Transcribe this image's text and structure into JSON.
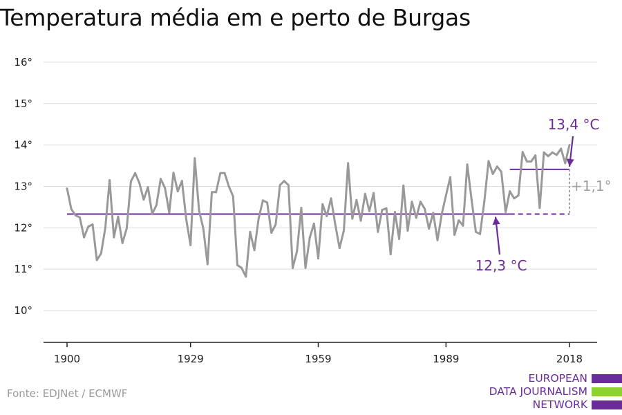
{
  "title": "Temperatura média em e perto de Burgas",
  "source": "Fonte: EDJNet / ECMWF",
  "logo": {
    "line1": "EUROPEAN",
    "line2": "DATA JOURNALISM",
    "line3": "NETWORK"
  },
  "colors": {
    "series": "#999999",
    "accent": "#6a2c9a",
    "grid": "#dddddd",
    "green": "#8fd12f",
    "delta": "#a0a0a0"
  },
  "chart_data": {
    "type": "line",
    "title": "Temperatura média em e perto de Burgas",
    "xlim": [
      1900,
      2018
    ],
    "ylim": [
      9.3,
      16.5
    ],
    "x_ticks": [
      1900,
      1929,
      1959,
      1989,
      2018
    ],
    "x_tick_labels": [
      "1900",
      "1929",
      "1959",
      "1989",
      "2018"
    ],
    "y_ticks": [
      10,
      11,
      12,
      13,
      14,
      15,
      16
    ],
    "y_tick_labels": [
      "10°",
      "11°",
      "12°",
      "13°",
      "14°",
      "15°",
      "16°"
    ],
    "grid": true,
    "series": [
      {
        "x_start": 1900,
        "values": [
          12.95,
          12.45,
          12.3,
          12.25,
          11.77,
          12.03,
          12.08,
          11.22,
          11.38,
          12.0,
          13.15,
          11.77,
          12.27,
          11.63,
          11.98,
          13.12,
          13.32,
          13.08,
          12.68,
          12.98,
          12.33,
          12.55,
          13.18,
          12.96,
          12.37,
          13.33,
          12.88,
          13.13,
          12.2,
          11.58,
          13.68,
          12.42,
          11.98,
          11.12,
          12.86,
          12.86,
          13.32,
          13.32,
          13.0,
          12.76,
          11.1,
          11.03,
          10.82,
          11.9,
          11.46,
          12.22,
          12.66,
          12.61,
          11.88,
          12.08,
          13.03,
          13.13,
          13.03,
          11.03,
          11.43,
          12.48,
          11.03,
          11.76,
          12.1,
          11.26,
          12.57,
          12.28,
          12.71,
          12.08,
          11.51,
          11.93,
          13.56,
          12.22,
          12.67,
          12.17,
          12.82,
          12.4,
          12.84,
          11.9,
          12.43,
          12.47,
          11.36,
          12.38,
          11.73,
          13.02,
          11.93,
          12.63,
          12.24,
          12.63,
          12.46,
          11.98,
          12.36,
          11.7,
          12.33,
          12.78,
          13.22,
          11.83,
          12.18,
          12.05,
          13.53,
          12.68,
          11.9,
          11.85,
          12.63,
          13.61,
          13.3,
          13.48,
          13.35,
          12.38,
          12.88,
          12.71,
          12.78,
          13.83,
          13.6,
          13.6,
          13.75,
          12.48,
          13.82,
          13.73,
          13.82,
          13.76,
          13.91,
          13.56,
          14.0
        ]
      }
    ],
    "baseline": {
      "label": "12,3 °C",
      "value": 12.33,
      "x_range": [
        1900,
        2018
      ]
    },
    "recent": {
      "label": "13,4 °C",
      "value": 13.41,
      "x_range": [
        2004,
        2018
      ]
    },
    "delta_label": "+1,1°"
  }
}
